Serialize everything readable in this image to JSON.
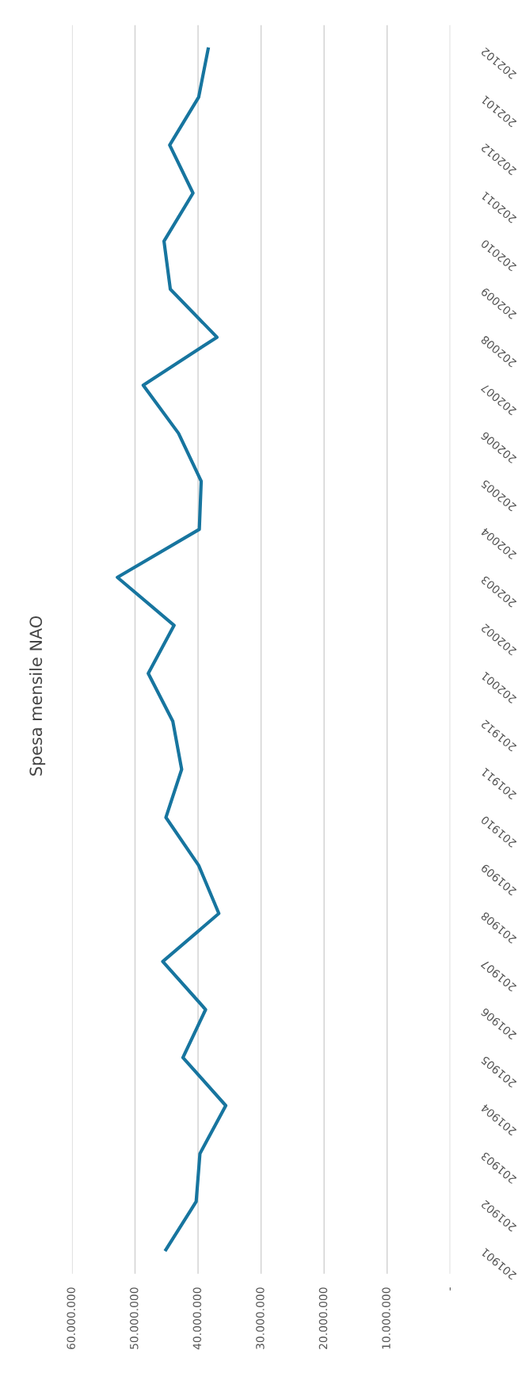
{
  "chart_data": {
    "type": "line",
    "orientation": "horizontal",
    "title": "Spesa mensile NAO",
    "categories": [
      "202102",
      "202101",
      "202012",
      "202011",
      "202010",
      "202009",
      "202008",
      "202007",
      "202006",
      "202005",
      "202004",
      "202003",
      "202002",
      "202001",
      "201912",
      "201911",
      "201910",
      "201909",
      "201908",
      "201907",
      "201906",
      "201905",
      "201904",
      "201903",
      "201902",
      "201901"
    ],
    "series": [
      {
        "color": "#17759f",
        "values": [
          38400000,
          39900000,
          44500000,
          40800000,
          45400000,
          44400000,
          37000000,
          48700000,
          43100000,
          39500000,
          39800000,
          52800000,
          43800000,
          47900000,
          44000000,
          42600000,
          45100000,
          39900000,
          36700000,
          45600000,
          38800000,
          42400000,
          35600000,
          39700000,
          40300000,
          45100000
        ]
      }
    ],
    "xlim": [
      60000000,
      0
    ],
    "xticks": [
      {
        "value": 60000000,
        "label": "60.000.000"
      },
      {
        "value": 50000000,
        "label": "50.000.000"
      },
      {
        "value": 40000000,
        "label": "40.000.000"
      },
      {
        "value": 30000000,
        "label": "30.000.000"
      },
      {
        "value": 20000000,
        "label": "20.000.000"
      },
      {
        "value": 10000000,
        "label": "10.000.000"
      },
      {
        "value": 0,
        "label": "-"
      }
    ],
    "grid": "x",
    "legend": false,
    "marker": "none",
    "line_style": "solid"
  }
}
